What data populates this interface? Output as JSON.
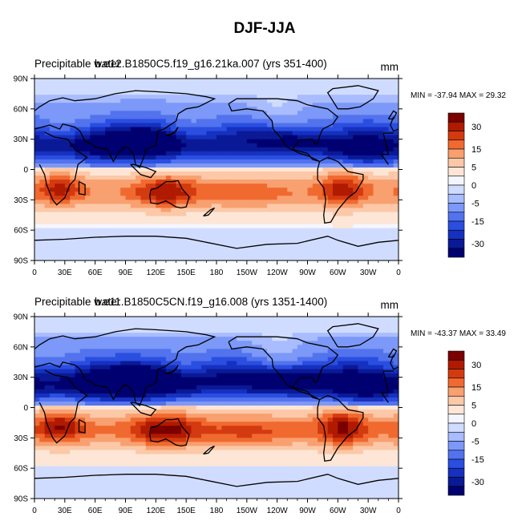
{
  "title": "DJF-JJA",
  "panels": [
    {
      "left_label": "Precipitable water",
      "case_label": "b.e12.B1850C5.f19_g16.21ka.007 (yrs 351-400)",
      "units": "mm",
      "stats": "MIN = -37.94 MAX =  29.32"
    },
    {
      "left_label": "Precipitable water",
      "case_label": "b.e11.B1850C5CN.f19_g16.008 (yrs 1351-1400)",
      "units": "mm",
      "stats": "MIN = -43.37 MAX =  33.49"
    }
  ],
  "colorbar": {
    "labels": [
      "30",
      "15",
      "5",
      "0",
      "-5",
      "-15",
      "-30"
    ],
    "colors": [
      "#7a0000",
      "#b01a00",
      "#d43a10",
      "#f06a30",
      "#f8a070",
      "#fcc8a8",
      "#fde6d6",
      "#f4f6ff",
      "#d0dcff",
      "#a8bcff",
      "#7c98f8",
      "#5272ee",
      "#2a4ee0",
      "#1630c0",
      "#0a1a96",
      "#000070"
    ]
  },
  "chart_data": [
    {
      "type": "heatmap",
      "title": "DJF-JJA",
      "subtitle": "b.e12.B1850C5.f19_g16.21ka.007 (yrs 351-400)",
      "variable": "Precipitable water",
      "units": "mm",
      "x_ticks": [
        "0",
        "30E",
        "60E",
        "90E",
        "120E",
        "150E",
        "180",
        "150W",
        "120W",
        "90W",
        "60W",
        "30W",
        "0"
      ],
      "y_ticks": [
        "90N",
        "60N",
        "30N",
        "0",
        "30S",
        "60S",
        "90S"
      ],
      "xlim": [
        0,
        360
      ],
      "ylim": [
        -90,
        90
      ],
      "min": -37.94,
      "max": 29.32,
      "contour_levels": [
        -35,
        -30,
        -25,
        -20,
        -15,
        -10,
        -5,
        -2.5,
        0,
        2.5,
        5,
        10,
        15,
        20,
        25,
        30,
        35
      ]
    },
    {
      "type": "heatmap",
      "title": "DJF-JJA",
      "subtitle": "b.e11.B1850C5CN.f19_g16.008 (yrs 1351-1400)",
      "variable": "Precipitable water",
      "units": "mm",
      "x_ticks": [
        "0",
        "30E",
        "60E",
        "90E",
        "120E",
        "150E",
        "180",
        "150W",
        "120W",
        "90W",
        "60W",
        "30W",
        "0"
      ],
      "y_ticks": [
        "90N",
        "60N",
        "30N",
        "0",
        "30S",
        "60S",
        "90S"
      ],
      "xlim": [
        0,
        360
      ],
      "ylim": [
        -90,
        90
      ],
      "min": -43.37,
      "max": 33.49,
      "contour_levels": [
        -35,
        -30,
        -25,
        -20,
        -15,
        -10,
        -5,
        -2.5,
        0,
        2.5,
        5,
        10,
        15,
        20,
        25,
        30,
        35
      ]
    }
  ]
}
